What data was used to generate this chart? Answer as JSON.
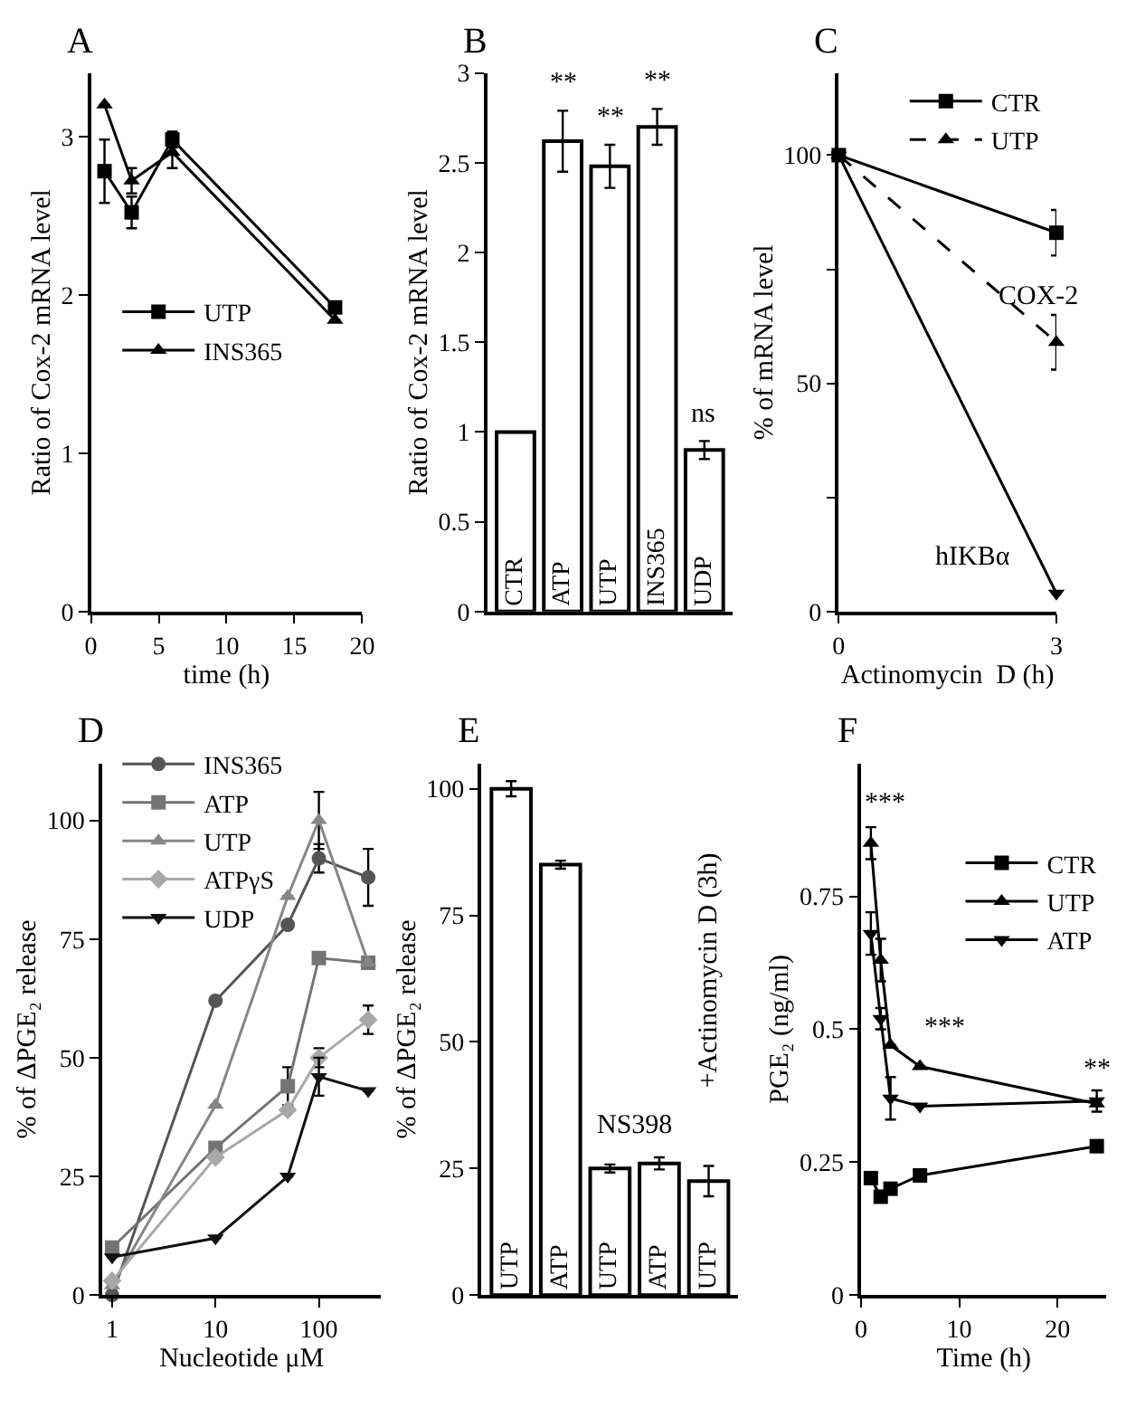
{
  "chart_data": [
    {
      "type": "line",
      "title": "A",
      "xlabel": "time (h)",
      "ylabel": "Ratio of Cox-2 mRNA level",
      "x": [
        1,
        3,
        6,
        18
      ],
      "xlim": [
        0,
        20
      ],
      "xticks": [
        0,
        5,
        10,
        15,
        20
      ],
      "ylim": [
        0,
        3.4
      ],
      "yticks": [
        0,
        1,
        2,
        3
      ],
      "legend": "left",
      "series": [
        {
          "name": "UTP",
          "color": "#000000",
          "marker": "square",
          "values": [
            2.78,
            2.52,
            2.98,
            1.92
          ],
          "errors": [
            0.2,
            0.1,
            0.05,
            null
          ]
        },
        {
          "name": "INS365",
          "color": "#000000",
          "marker": "triangle",
          "values": [
            3.2,
            2.72,
            2.9,
            1.84
          ],
          "errors": [
            null,
            0.08,
            0.1,
            null
          ]
        }
      ]
    },
    {
      "type": "bar",
      "title": "B",
      "ylabel": "Ratio of Cox-2 mRNA level",
      "categories": [
        "CTR",
        "ATP",
        "UTP",
        "INS365",
        "UDP"
      ],
      "values": [
        1.0,
        2.62,
        2.48,
        2.7,
        0.9
      ],
      "errors": [
        null,
        0.17,
        0.12,
        0.1,
        0.05
      ],
      "color": "#ffffff",
      "ylim": [
        0,
        3
      ],
      "yticks": [
        0,
        0.5,
        1,
        1.5,
        2,
        2.5,
        3
      ],
      "tick_labels": "y",
      "annotations": [
        "**",
        "**",
        "**",
        "ns"
      ]
    },
    {
      "type": "line",
      "title": "C",
      "xlabel": "Actinomycin  D (h)",
      "ylabel": "% of mRNA level",
      "x": [
        0,
        3
      ],
      "xlim": [
        0,
        3
      ],
      "xticks": [
        0,
        3
      ],
      "ylim": [
        0,
        118
      ],
      "yticks": [
        0,
        {
          "value": 25,
          "label": null
        },
        50,
        {
          "value": 75,
          "label": null
        },
        100
      ],
      "legend": "top right",
      "series": [
        {
          "name": "CTR",
          "color": "#000000",
          "marker": "square",
          "line_style": "solid",
          "values": [
            100,
            83
          ],
          "errors": [
            null,
            5
          ]
        },
        {
          "name": "UTP",
          "color": "#000000",
          "marker": "triangle",
          "line_style": "dashed",
          "values": [
            100,
            59
          ],
          "errors": [
            null,
            6
          ]
        },
        {
          "color": "#000000",
          "marker": "triangle-down",
          "line_style": "solid",
          "values": [
            100,
            4
          ]
        }
      ],
      "annotations": [
        "COX-2",
        "hIKBα"
      ]
    },
    {
      "type": "line",
      "title": "D",
      "xlabel": "Nucleotide μM",
      "ylabel": "% of ΔPGE₂ release",
      "x": [
        1,
        10,
        50,
        100,
        300
      ],
      "log": "x",
      "xlim": [
        0.8,
        400
      ],
      "xticks": [
        1,
        10,
        100
      ],
      "ylim": [
        0,
        112
      ],
      "yticks": [
        0,
        25,
        50,
        75,
        100
      ],
      "legend": "top left",
      "series": [
        {
          "name": "INS365",
          "color": "#555555",
          "marker": "circle",
          "values": [
            0,
            62,
            78,
            92,
            88
          ],
          "errors": [
            null,
            null,
            null,
            3,
            6
          ]
        },
        {
          "name": "ATP",
          "color": "#747474",
          "marker": "square",
          "values": [
            10,
            31,
            44,
            71,
            70
          ],
          "errors": [
            null,
            null,
            4,
            null,
            null
          ]
        },
        {
          "name": "UTP",
          "color": "#868686",
          "marker": "triangle",
          "values": [
            2,
            40,
            84,
            100,
            70
          ],
          "errors": [
            null,
            null,
            null,
            6,
            null
          ]
        },
        {
          "name": "ATPγS",
          "color": "#a8a8a8",
          "marker": "diamond",
          "values": [
            3,
            29,
            39,
            50,
            58
          ],
          "errors": [
            null,
            null,
            null,
            2,
            3
          ]
        },
        {
          "name": "UDP",
          "color": "#111111",
          "marker": "triangle-down",
          "values": [
            8,
            12,
            25,
            46,
            43
          ],
          "errors": [
            null,
            null,
            null,
            4,
            null
          ]
        }
      ]
    },
    {
      "type": "bar",
      "title": "E",
      "ylabel": "% of ΔPGE₂ release",
      "categories": [
        "UTP",
        "ATP",
        "UTP",
        "ATP",
        "UTP"
      ],
      "values": [
        100,
        85,
        25,
        26,
        22.5
      ],
      "errors": [
        1.5,
        0.8,
        0.8,
        1.2,
        3
      ],
      "color": "#ffffff",
      "ylim": [
        0,
        105
      ],
      "yticks": [
        0,
        25,
        50,
        75,
        100
      ],
      "tick_labels": "y",
      "annotations": [
        "NS398",
        "+Actinomycin D (3h)"
      ]
    },
    {
      "type": "line",
      "title": "F",
      "xlabel": "Time (h)",
      "ylabel": "PGE₂ (ng/ml)",
      "x": [
        1,
        2,
        3,
        6,
        24
      ],
      "xlim": [
        0,
        25
      ],
      "xticks": [
        0,
        10,
        20
      ],
      "ylim": [
        0,
        1.0
      ],
      "yticks": [
        0,
        0.25,
        0.5,
        0.75
      ],
      "legend": "right",
      "series": [
        {
          "name": "CTR",
          "color": "#000000",
          "marker": "square",
          "values": [
            0.22,
            0.185,
            0.2,
            0.225,
            0.28
          ],
          "errors": [
            null,
            null,
            null,
            null,
            null
          ]
        },
        {
          "name": "UTP",
          "color": "#000000",
          "marker": "triangle",
          "values": [
            0.85,
            0.63,
            0.47,
            0.43,
            0.36
          ],
          "errors": [
            0.03,
            0.04,
            null,
            null,
            null
          ]
        },
        {
          "name": "ATP",
          "color": "#000000",
          "marker": "triangle-down",
          "values": [
            0.68,
            0.52,
            0.37,
            0.355,
            0.365
          ],
          "errors": [
            0.04,
            0.02,
            0.04,
            null,
            0.02
          ]
        }
      ],
      "annotations": [
        "***",
        "***",
        "**"
      ]
    }
  ]
}
